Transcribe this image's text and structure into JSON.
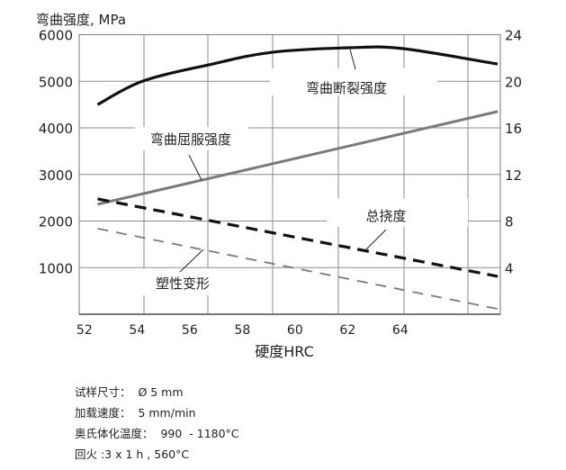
{
  "chart_data": {
    "type": "line",
    "title": "",
    "ylabel": "弯曲强度, MPa",
    "xlabel": "硬度HRC",
    "xlim": [
      51.8,
      67.8
    ],
    "ylim": [
      0,
      6000
    ],
    "y2lim": [
      0,
      24
    ],
    "grid": true,
    "x_ticks": [
      "52",
      "54",
      "56",
      "58",
      "60",
      "62",
      "64"
    ],
    "x_tick_values": [
      52,
      54,
      56,
      58,
      60,
      62,
      64
    ],
    "y_ticks": [
      "6000",
      "5000",
      "4000",
      "3000",
      "2000",
      "1000"
    ],
    "y_tick_values": [
      6000,
      5000,
      4000,
      3000,
      2000,
      1000
    ],
    "y2_ticks": [
      "24",
      "20",
      "16",
      "12",
      "8",
      "4"
    ],
    "y2_tick_values": [
      24,
      20,
      16,
      12,
      8,
      4
    ],
    "series": [
      {
        "name": "弯曲断裂强度",
        "axis": "left",
        "style": "solid",
        "color": "#111111",
        "width": 3.2,
        "x": [
          52.5,
          54.2,
          56.7,
          59.1,
          62.1,
          64.1,
          67.7
        ],
        "y": [
          4500,
          5000,
          5350,
          5620,
          5720,
          5700,
          5370
        ]
      },
      {
        "name": "弯曲屈服强度",
        "axis": "left",
        "style": "solid",
        "color": "#7a7a7a",
        "width": 3,
        "x": [
          52.5,
          67.7
        ],
        "y": [
          2360,
          4350
        ]
      },
      {
        "name": "总挠度",
        "axis": "right",
        "style": "dashed-bold",
        "color": "#111111",
        "width": 3.2,
        "x": [
          52.5,
          67.7
        ],
        "y": [
          9.9,
          3.25
        ]
      },
      {
        "name": "塑性变形",
        "axis": "right",
        "style": "dashed",
        "color": "#7a7a7a",
        "width": 1.8,
        "x": [
          52.5,
          67.7
        ],
        "y": [
          7.35,
          0.46
        ]
      }
    ]
  },
  "notes": [
    "试样尺寸：  Ø 5 mm",
    "加载速度：  5 mm/min",
    "奥氏体化温度：  990  - 1180°C",
    "回火 :3 x 1 h , 560°C"
  ]
}
